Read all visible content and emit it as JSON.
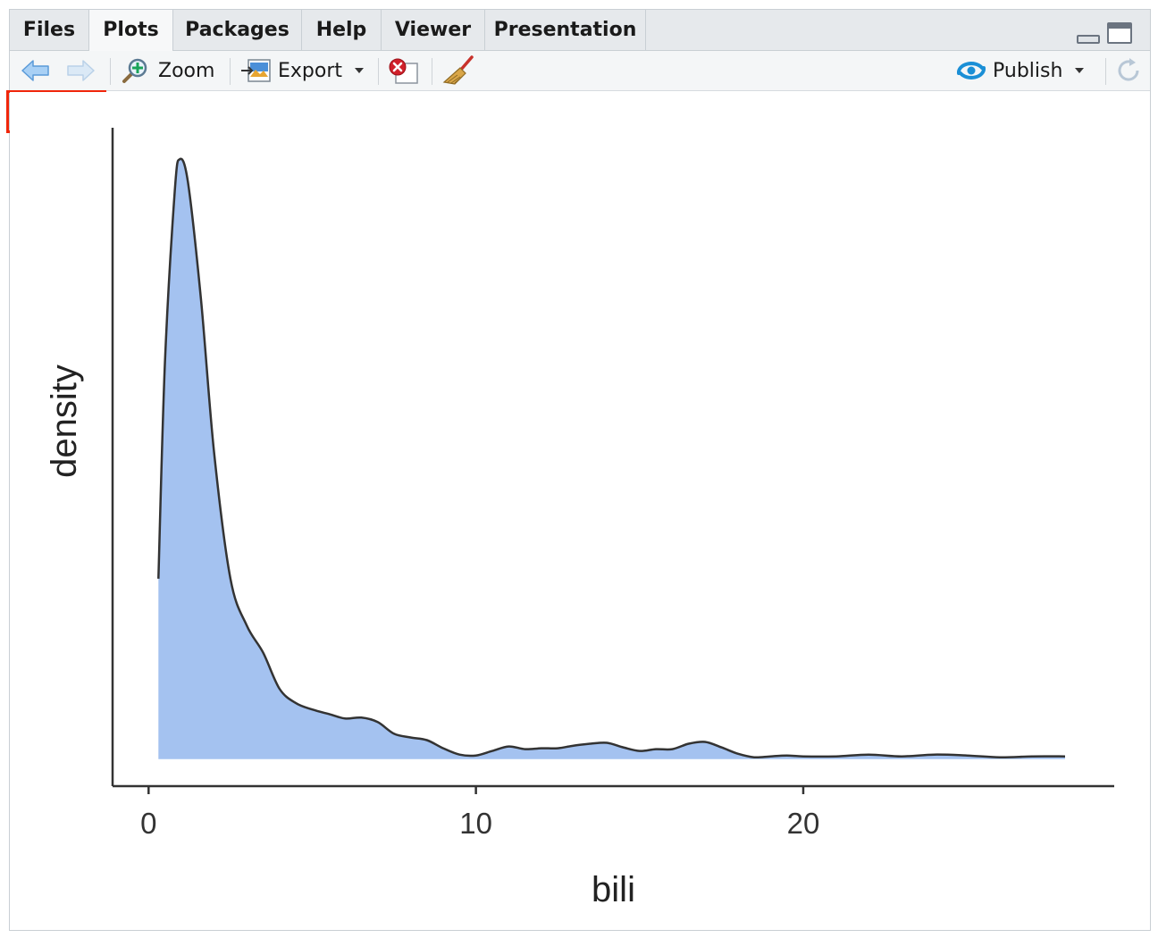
{
  "tabs": [
    {
      "label": "Files",
      "active": false
    },
    {
      "label": "Plots",
      "active": true
    },
    {
      "label": "Packages",
      "active": false
    },
    {
      "label": "Help",
      "active": false
    },
    {
      "label": "Viewer",
      "active": false
    },
    {
      "label": "Presentation",
      "active": false
    }
  ],
  "toolbar": {
    "back_icon": "back-arrow-icon",
    "forward_icon": "forward-arrow-icon",
    "zoom_label": "Zoom",
    "export_label": "Export",
    "publish_label": "Publish",
    "colors": {
      "accent": "#1a8fd6",
      "highlight": "#f0260a"
    }
  },
  "chart_data": {
    "type": "area",
    "xlabel": "bili",
    "ylabel": "density",
    "xlim": [
      -1.1,
      29.5
    ],
    "xticks": [
      0,
      10,
      20
    ],
    "fill_color": "#a4c2f0",
    "line_color": "#333333",
    "grid": false,
    "x": [
      0.3,
      0.5,
      0.8,
      0.95,
      1.2,
      1.6,
      2.0,
      2.5,
      3.0,
      3.5,
      4.0,
      4.5,
      5.0,
      5.5,
      6.0,
      6.5,
      7.0,
      7.5,
      8.0,
      8.5,
      9.0,
      9.5,
      10.0,
      10.5,
      11.0,
      11.5,
      12.0,
      12.5,
      13.0,
      13.5,
      14.0,
      14.5,
      15.0,
      15.5,
      16.0,
      16.5,
      17.0,
      17.5,
      18.0,
      18.5,
      19.0,
      19.5,
      20.0,
      21.0,
      22.0,
      23.0,
      24.0,
      25.0,
      26.0,
      27.0,
      28.0
    ],
    "y": [
      0.2,
      0.44,
      0.63,
      0.665,
      0.64,
      0.51,
      0.34,
      0.2,
      0.148,
      0.118,
      0.078,
      0.062,
      0.055,
      0.05,
      0.045,
      0.046,
      0.041,
      0.028,
      0.024,
      0.021,
      0.012,
      0.005,
      0.004,
      0.009,
      0.014,
      0.011,
      0.012,
      0.012,
      0.015,
      0.017,
      0.018,
      0.013,
      0.009,
      0.011,
      0.011,
      0.017,
      0.019,
      0.013,
      0.006,
      0.002,
      0.003,
      0.004,
      0.003,
      0.003,
      0.005,
      0.003,
      0.005,
      0.004,
      0.002,
      0.003,
      0.003
    ],
    "ylim": [
      -0.03,
      0.7
    ]
  }
}
